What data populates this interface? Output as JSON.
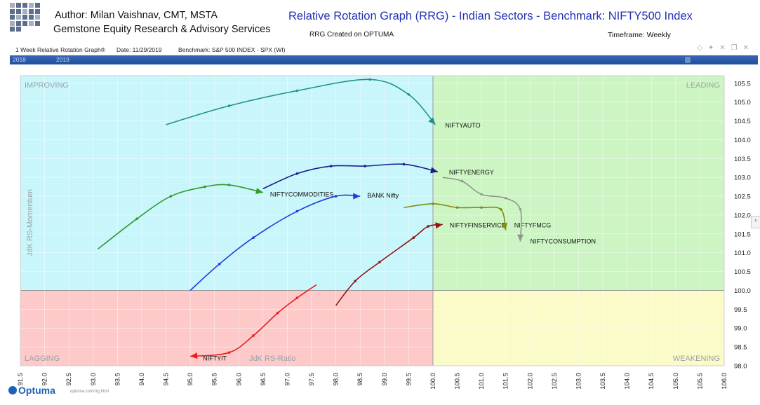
{
  "header": {
    "author": "Author: Milan Vaishnav, CMT, MSTA",
    "company": "Gemstone Equity Research & Advisory Services",
    "title": "Relative Rotation Graph (RRG) - Indian Sectors - Benchmark: NIFTY500 Index",
    "created": "RRG Created on OPTUMA",
    "timeframe": "Timeframe: Weekly"
  },
  "subheader": {
    "name": "1 Week Relative Rotation Graph®",
    "date": "Date: 11/29/2019",
    "benchmark": "Benchmark:  S&P 500 INDEX - SPX (WI)"
  },
  "timebar": {
    "year1": "2018",
    "year2": "2019"
  },
  "footer": {
    "brand": "Optuma",
    "url": "optuma.com/rrg.html"
  },
  "colors": {
    "improving": "#c9f6fb",
    "leading": "#ccf5c3",
    "lagging": "#fdc9c9",
    "weakening": "#fafbc8"
  },
  "chart_data": {
    "type": "scatter",
    "quadrants": {
      "top_left": "IMPROVING",
      "top_right": "LEADING",
      "bottom_left": "LAGGING",
      "bottom_right": "WEAKENING"
    },
    "xlabel": "JdK RS-Ratio",
    "ylabel": "JdK RS-Momentum",
    "xlim": [
      91.5,
      106.0
    ],
    "ylim": [
      98.0,
      105.7
    ],
    "center": [
      100.0,
      100.0
    ],
    "x_ticks": [
      "91.5",
      "92.0",
      "92.5",
      "93.0",
      "93.5",
      "94.0",
      "94.5",
      "95.0",
      "95.5",
      "96.0",
      "96.5",
      "97.0",
      "97.5",
      "98.0",
      "98.5",
      "99.0",
      "99.5",
      "100.0",
      "100.5",
      "101.0",
      "101.5",
      "102.0",
      "102.5",
      "103.0",
      "103.5",
      "104.0",
      "104.5",
      "105.0",
      "105.5",
      "106.0"
    ],
    "y_ticks": [
      "98.0",
      "98.5",
      "99.0",
      "99.5",
      "100.0",
      "100.5",
      "101.0",
      "101.5",
      "102.0",
      "102.5",
      "103.0",
      "103.5",
      "104.0",
      "104.5",
      "105.0",
      "105.5"
    ],
    "series": [
      {
        "name": "NIFTYAUTO",
        "color": "#1f918c",
        "points": [
          [
            94.5,
            104.4
          ],
          [
            95.8,
            104.9
          ],
          [
            97.2,
            105.3
          ],
          [
            98.7,
            105.6
          ],
          [
            99.5,
            105.2
          ],
          [
            100.05,
            104.4
          ]
        ]
      },
      {
        "name": "NIFTYENERGY",
        "color": "#1b1e8a",
        "points": [
          [
            96.5,
            102.7
          ],
          [
            97.2,
            103.1
          ],
          [
            97.9,
            103.3
          ],
          [
            98.6,
            103.3
          ],
          [
            99.4,
            103.35
          ],
          [
            100.1,
            103.15
          ]
        ]
      },
      {
        "name": "NIFTYCOMMODITIES",
        "color": "#2e9a2b",
        "points": [
          [
            93.1,
            101.1
          ],
          [
            93.9,
            101.9
          ],
          [
            94.6,
            102.5
          ],
          [
            95.3,
            102.75
          ],
          [
            95.8,
            102.8
          ],
          [
            96.5,
            102.6
          ]
        ]
      },
      {
        "name": "BANK Nifty",
        "color": "#1f3dde",
        "points": [
          [
            95.0,
            100.0
          ],
          [
            95.6,
            100.7
          ],
          [
            96.3,
            101.4
          ],
          [
            97.2,
            102.1
          ],
          [
            98.0,
            102.5
          ],
          [
            98.5,
            102.5
          ]
        ]
      },
      {
        "name": "NIFTYFINSERVICE",
        "color": "#8e1516",
        "points": [
          [
            98.0,
            99.6
          ],
          [
            98.4,
            100.25
          ],
          [
            98.9,
            100.75
          ],
          [
            99.6,
            101.4
          ],
          [
            99.9,
            101.7
          ],
          [
            100.2,
            101.75
          ]
        ]
      },
      {
        "name": "NIFTYFMCG",
        "color": "#848a14",
        "points": [
          [
            99.4,
            102.2
          ],
          [
            100.0,
            102.3
          ],
          [
            100.5,
            102.2
          ],
          [
            101.0,
            102.2
          ],
          [
            101.4,
            102.15
          ],
          [
            101.5,
            101.6
          ]
        ]
      },
      {
        "name": "NIFTYCONSUMPTION",
        "color": "#949494",
        "points": [
          [
            100.2,
            103.0
          ],
          [
            100.6,
            102.9
          ],
          [
            101.0,
            102.55
          ],
          [
            101.5,
            102.45
          ],
          [
            101.8,
            102.15
          ],
          [
            101.8,
            101.3
          ]
        ]
      },
      {
        "name": "NIFTYIT",
        "color": "#ee1c1c",
        "points": [
          [
            97.6,
            100.15
          ],
          [
            97.2,
            99.8
          ],
          [
            96.8,
            99.4
          ],
          [
            96.3,
            98.8
          ],
          [
            95.8,
            98.35
          ],
          [
            95.0,
            98.25
          ]
        ]
      }
    ]
  }
}
